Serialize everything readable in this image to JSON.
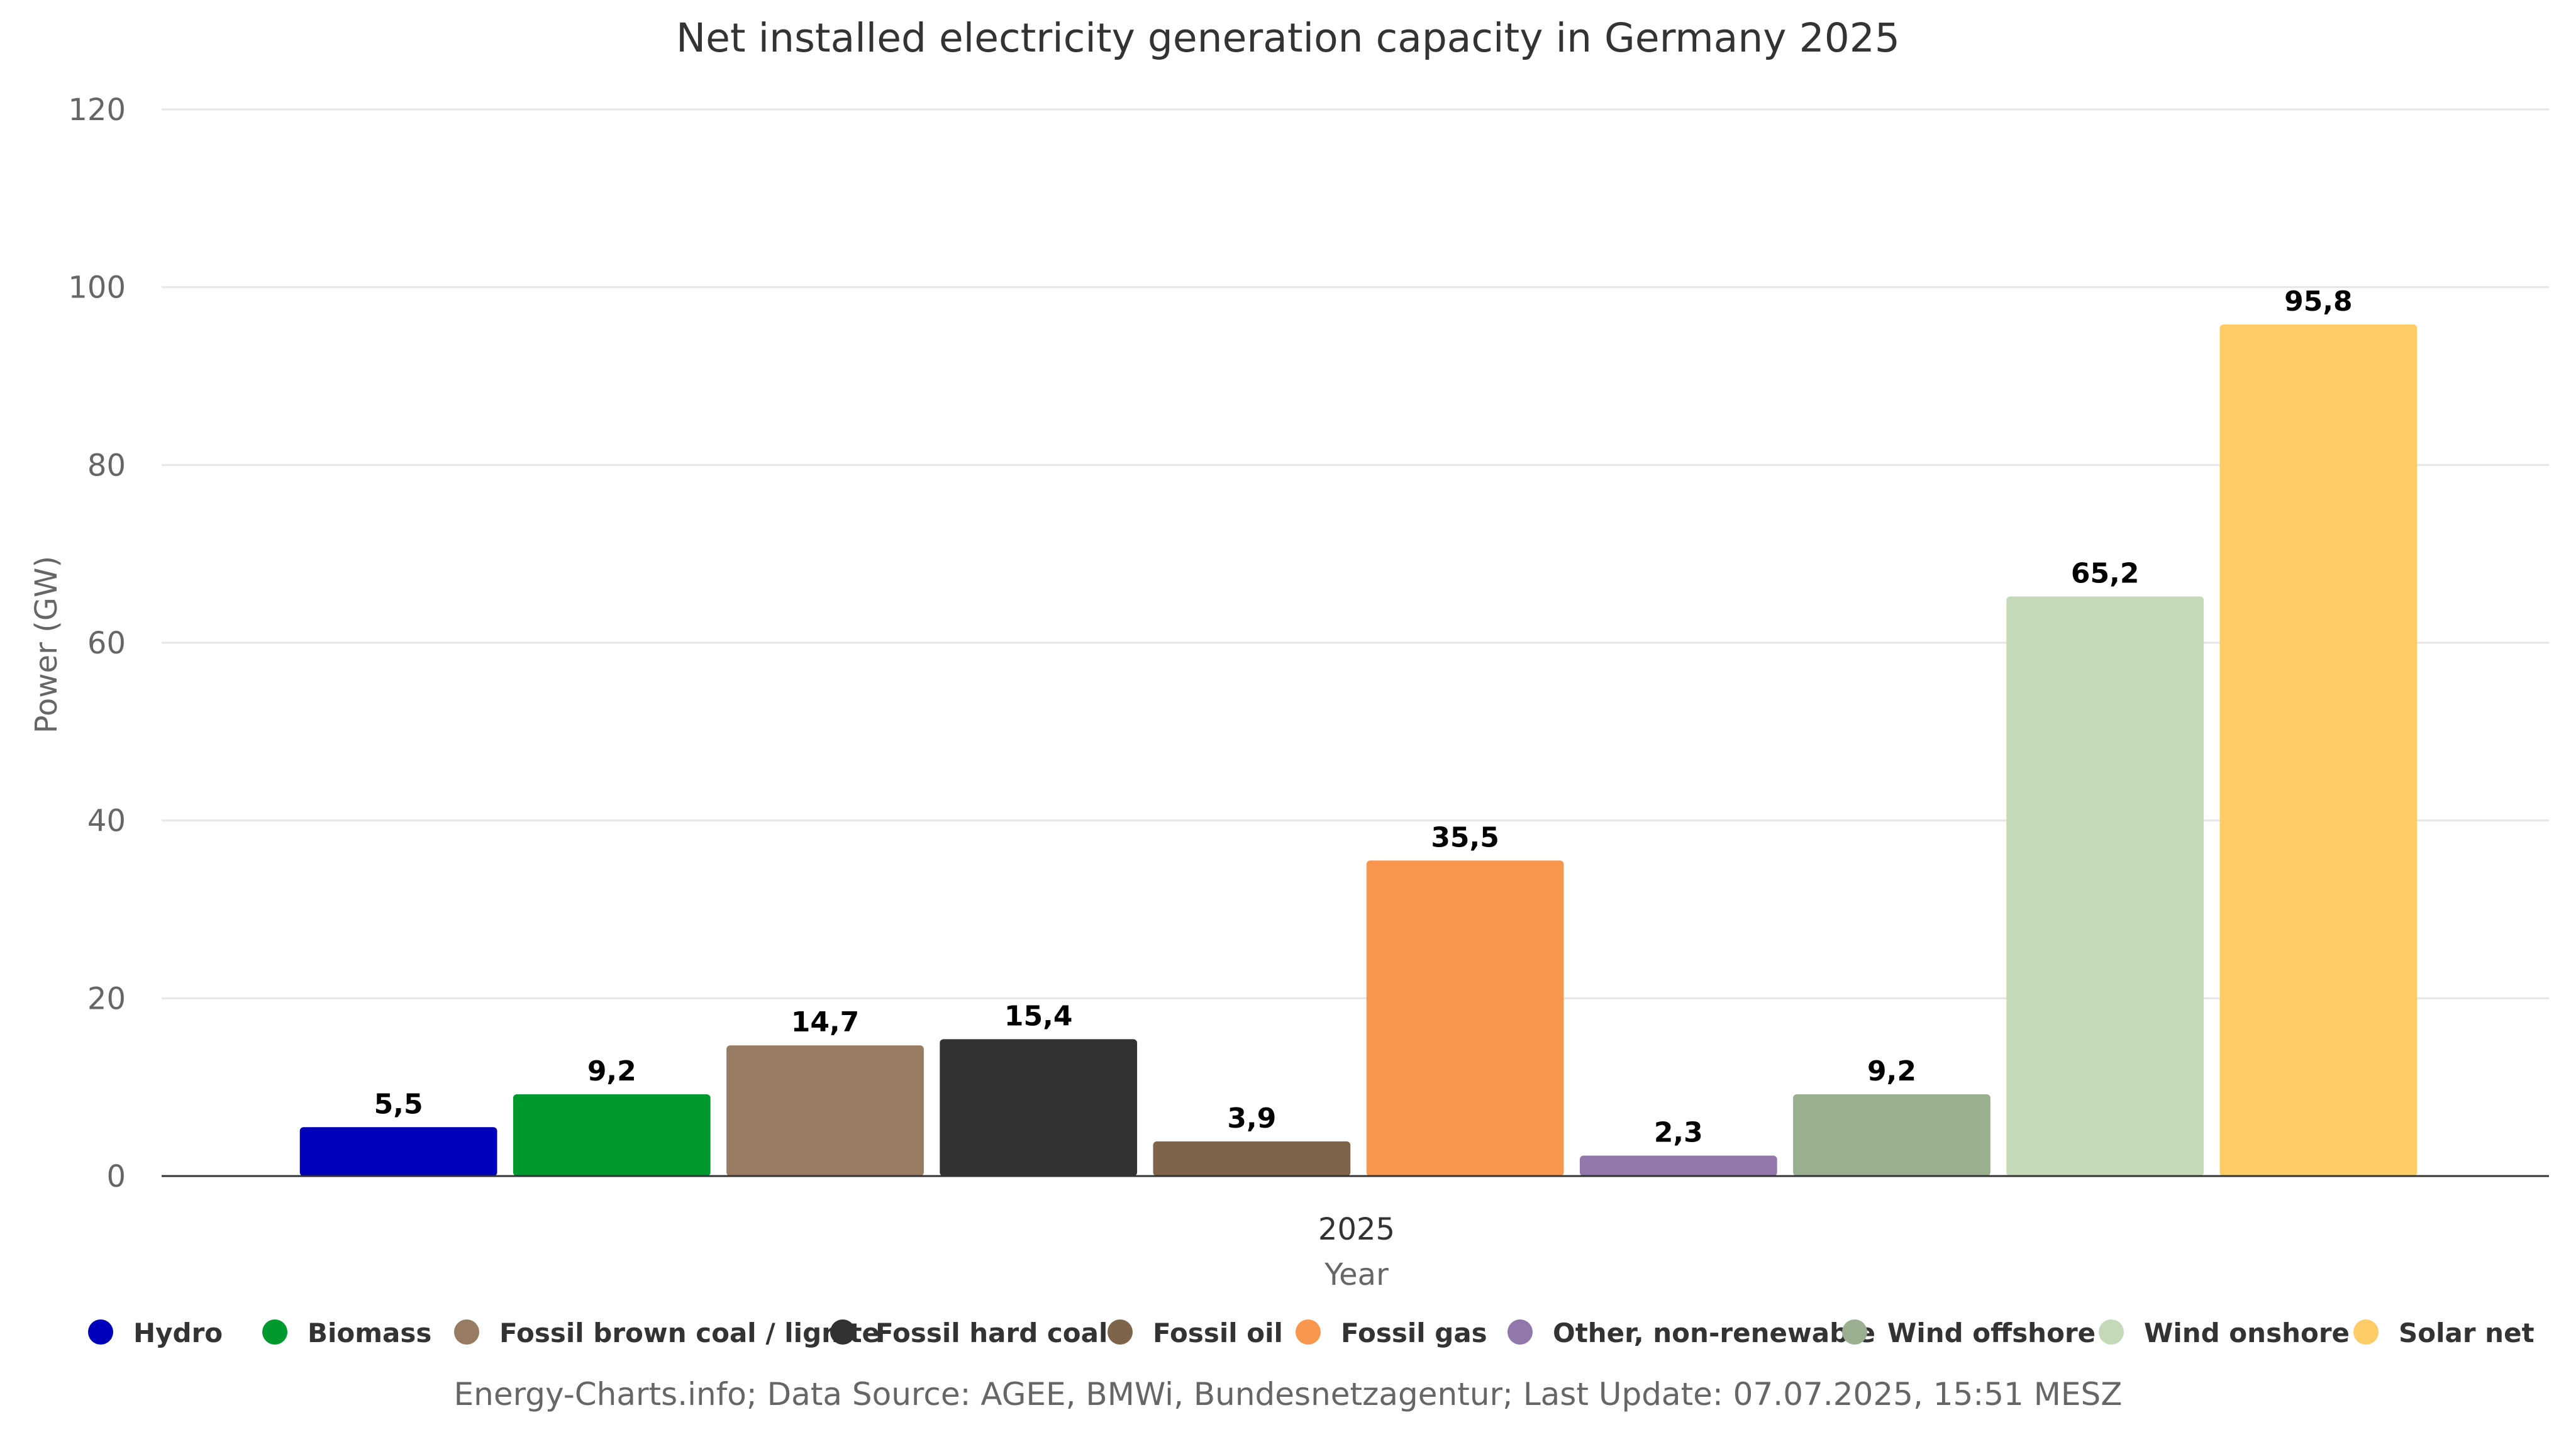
{
  "chart_data": {
    "type": "bar",
    "title": "Net installed electricity generation capacity in Germany 2025",
    "xlabel": "Year",
    "ylabel": "Power (GW)",
    "categories": [
      "2025"
    ],
    "ylim": [
      0,
      120
    ],
    "yticks": [
      "0",
      "20",
      "40",
      "60",
      "80",
      "100",
      "120"
    ],
    "grid": true,
    "legend_position": "bottom",
    "series": [
      {
        "name": "Hydro",
        "values": [
          5.5
        ],
        "label": "5,5",
        "color": "#0000ba"
      },
      {
        "name": "Biomass",
        "values": [
          9.2
        ],
        "label": "9,2",
        "color": "#00992f"
      },
      {
        "name": "Fossil brown coal / lignite",
        "values": [
          14.7
        ],
        "label": "14,7",
        "color": "#977c61"
      },
      {
        "name": "Fossil hard coal",
        "values": [
          15.4
        ],
        "label": "15,4",
        "color": "#323232"
      },
      {
        "name": "Fossil oil",
        "values": [
          3.9
        ],
        "label": "3,9",
        "color": "#7e644a"
      },
      {
        "name": "Fossil gas",
        "values": [
          35.5
        ],
        "label": "35,5",
        "color": "#f9964d"
      },
      {
        "name": "Other, non-renewable",
        "values": [
          2.3
        ],
        "label": "2,3",
        "color": "#9277ac"
      },
      {
        "name": "Wind offshore",
        "values": [
          9.2
        ],
        "label": "9,2",
        "color": "#9aae90"
      },
      {
        "name": "Wind onshore",
        "values": [
          65.2
        ],
        "label": "65,2",
        "color": "#c3d9b7"
      },
      {
        "name": "Solar net",
        "values": [
          95.8
        ],
        "label": "95,8",
        "color": "#fecc66"
      }
    ],
    "source": "Energy-Charts.info; Data Source: AGEE, BMWi, Bundesnetzagentur; Last Update: 07.07.2025, 15:51 MESZ"
  }
}
